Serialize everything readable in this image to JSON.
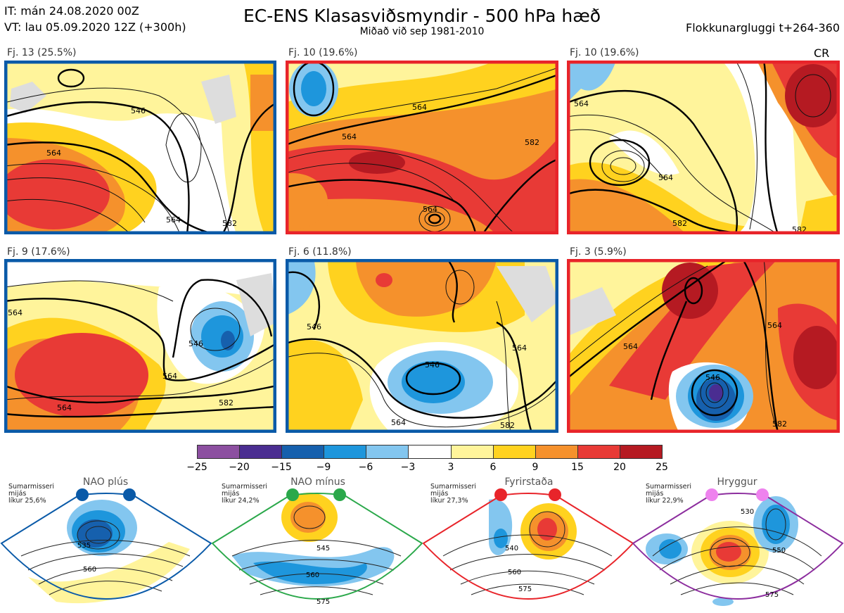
{
  "header": {
    "it_line": "IT: mán 24.08.2020 00Z",
    "vt_line": "VT: lau 05.09.2020 12Z  (+300h)",
    "title": "EC-ENS Klasasviðsmyndir - 500 hPa hæð",
    "subtitle": "Miðað við sep 1981-2010",
    "window": "Flokkunargluggi t+264-360",
    "cr_label": "CR"
  },
  "panels": [
    {
      "label": "Fj. 13 (25.5%)",
      "border": "#0a5aa8",
      "contours": [
        "546",
        "564",
        "564",
        "582"
      ]
    },
    {
      "label": "Fj. 10 (19.6%)",
      "border": "#e8242a",
      "contours": [
        "564",
        "564",
        "582",
        "564"
      ]
    },
    {
      "label": "Fj. 10 (19.6%)",
      "border": "#e8242a",
      "contours": [
        "564",
        "564",
        "582",
        "582"
      ]
    },
    {
      "label": "Fj. 9 (17.6%)",
      "border": "#0a5aa8",
      "contours": [
        "564",
        "546",
        "564",
        "564",
        "582"
      ]
    },
    {
      "label": "Fj. 6 (11.8%)",
      "border": "#0a5aa8",
      "contours": [
        "546",
        "546",
        "564",
        "564",
        "582"
      ]
    },
    {
      "label": "Fj. 3 (5.9%)",
      "border": "#e8242a",
      "contours": [
        "564",
        "564",
        "546",
        "582"
      ]
    }
  ],
  "legend": {
    "ticks": [
      "−25",
      "−20",
      "−15",
      "−9",
      "−6",
      "−3",
      "3",
      "6",
      "9",
      "15",
      "20",
      "25"
    ],
    "colors": [
      "#8c4fa0",
      "#4a2d91",
      "#1660ad",
      "#1e96dc",
      "#83c6ef",
      "#ffffff",
      "#fff49b",
      "#ffd21f",
      "#f5912c",
      "#e83a36",
      "#b51a22"
    ]
  },
  "regimes": [
    {
      "name": "NAO plús",
      "color": "#0a5aa8",
      "season": "Sumarmisseri\nmijás\nlíkur 25,6%",
      "contours": [
        "535",
        "560"
      ]
    },
    {
      "name": "NAO mínus",
      "color": "#2aa84a",
      "season": "Sumarmisseri\nmijás\nlíkur 24,2%",
      "contours": [
        "545",
        "560",
        "575"
      ]
    },
    {
      "name": "Fyrirstaða",
      "color": "#e8242a",
      "season": "Sumarmisseri\nmijás\nlíkur 27,3%",
      "contours": [
        "540",
        "560",
        "575"
      ]
    },
    {
      "name": "Hryggur",
      "color": "#8c2d9e",
      "season": "Sumarmisseri\nmijás\nlíkur 22,9%",
      "contours": [
        "530",
        "550",
        "575"
      ]
    }
  ]
}
